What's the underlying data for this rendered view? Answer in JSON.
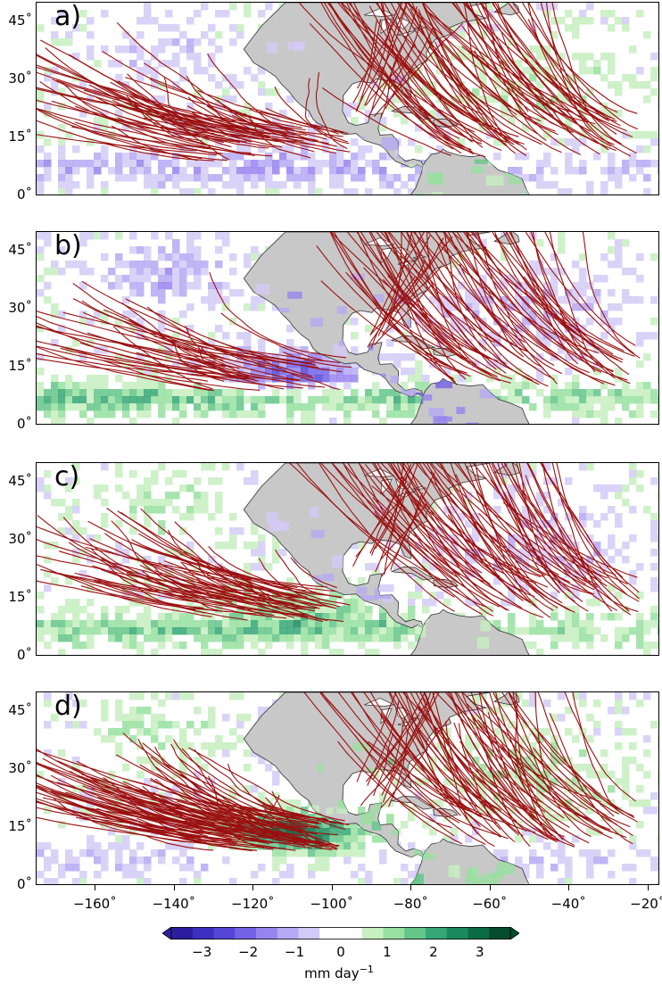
{
  "panels": [
    {
      "label": "a)",
      "tracks_seed": 11,
      "scheme": "a"
    },
    {
      "label": "b)",
      "tracks_seed": 23,
      "scheme": "b"
    },
    {
      "label": "c)",
      "tracks_seed": 37,
      "scheme": "c"
    },
    {
      "label": "d)",
      "tracks_seed": 53,
      "scheme": "d"
    }
  ],
  "lat_ticks": [
    "45˚",
    "30˚",
    "15˚",
    "0˚"
  ],
  "lon_ticks": [
    "−160˚",
    "−140˚",
    "−120˚",
    "−100˚",
    "−80˚",
    "−60˚",
    "−40˚",
    "−20˚"
  ],
  "lon_values": [
    -160,
    -140,
    -120,
    -100,
    -80,
    -60,
    -40,
    -20
  ],
  "lat_values": [
    45,
    30,
    15,
    0
  ],
  "map_extent": {
    "lon": [
      -175,
      -17
    ],
    "lat": [
      0,
      50
    ]
  },
  "colorbar": {
    "tick_labels": [
      "−3",
      "−2",
      "−1",
      "0",
      "1",
      "2",
      "3"
    ],
    "unit": "mm day",
    "unit_exponent": "−1",
    "colors": [
      "#2b1e9e",
      "#3d2fc0",
      "#5646d8",
      "#7462e6",
      "#9684ef",
      "#b5a9f3",
      "#d3cbf7",
      "#ffffff",
      "#ffffff",
      "#c7efc0",
      "#98e0a0",
      "#64c68a",
      "#35a774",
      "#1a8a5c",
      "#0c6c44",
      "#054d2e"
    ]
  },
  "colors": {
    "track": "#9b1010",
    "land": "#c8c8c8",
    "coast": "#333333",
    "lake": "#ffffff"
  }
}
